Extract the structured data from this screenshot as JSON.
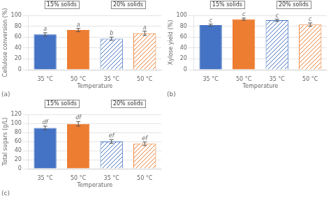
{
  "chart_data": [
    {
      "type": "bar",
      "title": "(a)",
      "xlabel": "Temperature",
      "ylabel": "Cellulose conversion (%)",
      "categories": [
        "35 °C",
        "50 °C",
        "35 °C",
        "50 °C"
      ],
      "values": [
        65,
        73,
        57,
        67
      ],
      "errors": [
        3,
        3,
        3,
        4
      ],
      "annotations": [
        "a",
        "a",
        "b",
        "a"
      ],
      "group_labels": [
        "15% solids",
        "20% solids"
      ],
      "colors": [
        "#4472c4",
        "#ed7d31",
        "#4472c4",
        "#ed7d31"
      ],
      "ylim": [
        0,
        100
      ],
      "yticks": [
        0,
        20,
        40,
        60,
        80,
        100
      ],
      "grid": true
    },
    {
      "type": "bar",
      "title": "(b)",
      "xlabel": "Temperature",
      "ylabel": "Xylose yield (%)",
      "categories": [
        "35 °C",
        "50 °C",
        "35 °C",
        "50 °C"
      ],
      "values": [
        82,
        93,
        91,
        83
      ],
      "errors": [
        2,
        2,
        2,
        3
      ],
      "annotations": [
        "c",
        "c",
        "c",
        "c"
      ],
      "group_labels": [
        "15% solids",
        "20% solids"
      ],
      "colors": [
        "#4472c4",
        "#ed7d31",
        "#4472c4",
        "#ed7d31"
      ],
      "ylim": [
        0,
        100
      ],
      "yticks": [
        0,
        20,
        40,
        60,
        80,
        100
      ],
      "grid": true
    },
    {
      "type": "bar",
      "title": "(c)",
      "xlabel": "Temperature",
      "ylabel": "Total sugars (g/L)",
      "categories": [
        "35 °C",
        "50 °C",
        "35 °C",
        "50 °C"
      ],
      "values": [
        90,
        99,
        60,
        55
      ],
      "errors": [
        4,
        5,
        4,
        4
      ],
      "annotations": [
        "df",
        "df",
        "ef",
        "ef"
      ],
      "group_labels": [
        "15% solids",
        "20% solids"
      ],
      "colors": [
        "#4472c4",
        "#ed7d31",
        "#4472c4",
        "#ed7d31"
      ],
      "ylim": [
        0,
        120
      ],
      "yticks": [
        0,
        20,
        40,
        60,
        80,
        100,
        120
      ],
      "grid": true
    }
  ]
}
